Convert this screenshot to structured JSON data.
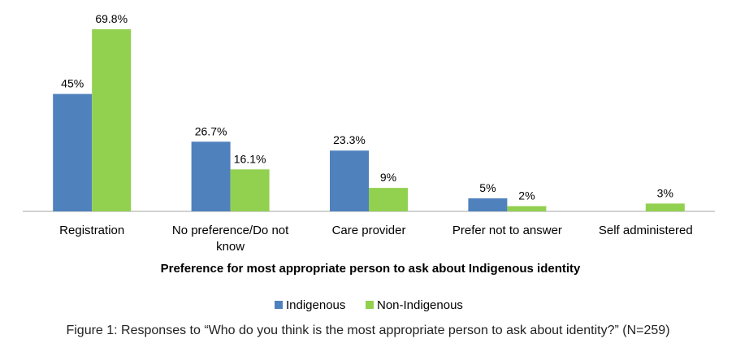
{
  "chart_data": {
    "type": "bar",
    "categories": [
      "Registration",
      "No preference/Do not know",
      "Care provider",
      "Prefer not to answer",
      "Self administered"
    ],
    "category_lines": [
      [
        "Registration"
      ],
      [
        "No preference/Do not",
        "know"
      ],
      [
        "Care provider"
      ],
      [
        "Prefer not to answer"
      ],
      [
        "Self administered"
      ]
    ],
    "series": [
      {
        "name": "Indigenous",
        "color": "#4f81bd",
        "values": [
          45,
          26.7,
          23.3,
          5,
          null
        ],
        "labels": [
          "45%",
          "26.7%",
          "23.3%",
          "5%",
          ""
        ]
      },
      {
        "name": "Non-Indigenous",
        "color": "#92d050",
        "values": [
          69.8,
          16.1,
          9,
          2,
          3
        ],
        "labels": [
          "69.8%",
          "16.1%",
          "9%",
          "2%",
          "3%"
        ]
      }
    ],
    "xlabel": "Preference for most appropriate person to ask about Indigenous identity",
    "ylim": [
      0,
      72
    ],
    "legend_position": "bottom",
    "grid": false
  },
  "caption": "Figure 1: Responses to “Who do you think is the most appropriate person to ask about identity?” (N=259)"
}
